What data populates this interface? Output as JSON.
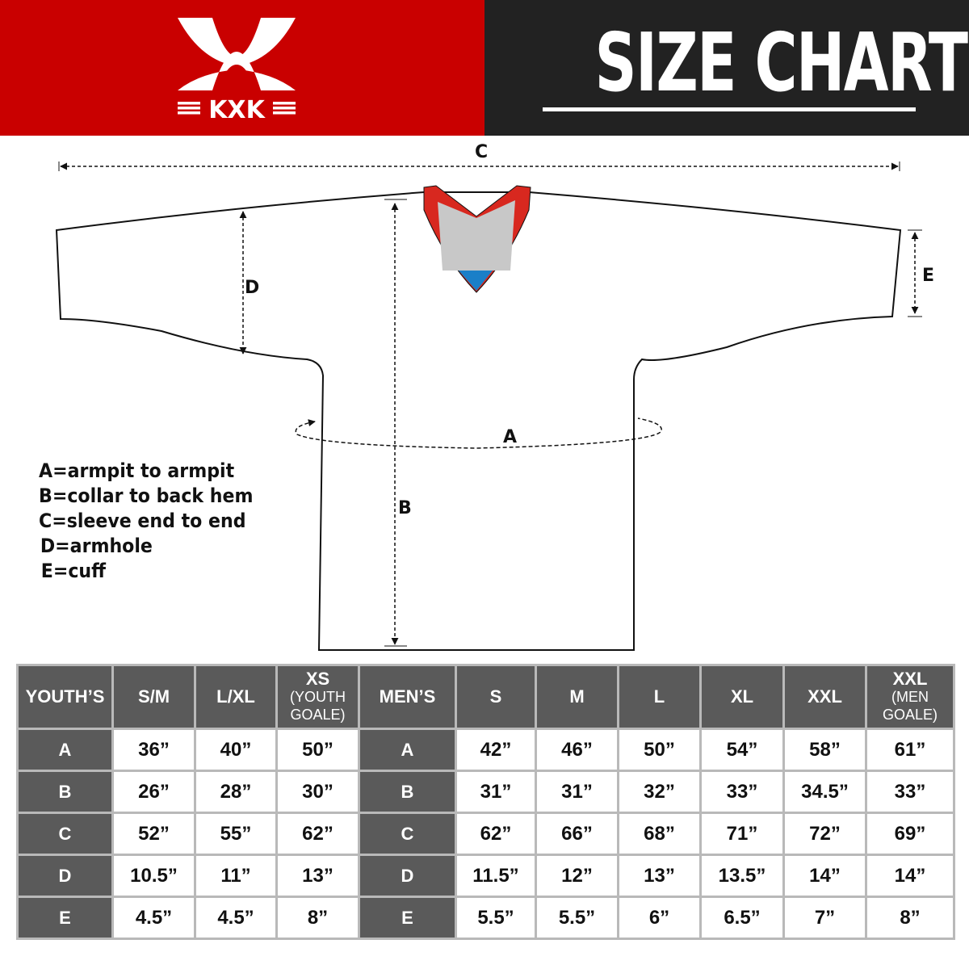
{
  "brand": {
    "logo_text": "KXK",
    "colors": {
      "red": "#c90000",
      "dark": "#222222",
      "table_header": "#5a5a5a"
    }
  },
  "header": {
    "title": "SIZE CHART"
  },
  "diagram": {
    "labels": {
      "a": "A",
      "b": "B",
      "c": "C",
      "d": "D",
      "e": "E"
    },
    "legend": [
      "A=armpit to armpit",
      "B=collar to back hem",
      "C=sleeve end to end",
      "D=armhole",
      "E=cuff"
    ]
  },
  "table": {
    "headers": [
      {
        "main": "YOUTH’S",
        "sub": ""
      },
      {
        "main": "S/M",
        "sub": ""
      },
      {
        "main": "L/XL",
        "sub": ""
      },
      {
        "main": "XS",
        "sub": "(YOUTH GOALE)"
      },
      {
        "main": "MEN’S",
        "sub": ""
      },
      {
        "main": "S",
        "sub": ""
      },
      {
        "main": "M",
        "sub": ""
      },
      {
        "main": "L",
        "sub": ""
      },
      {
        "main": "XL",
        "sub": ""
      },
      {
        "main": "XXL",
        "sub": ""
      },
      {
        "main": "XXL",
        "sub": "(MEN GOALE)"
      }
    ],
    "rows": [
      {
        "label": "A",
        "youth": [
          "36”",
          "40”",
          "50”"
        ],
        "men_label": "A",
        "men": [
          "42”",
          "46”",
          "50”",
          "54”",
          "58”",
          "61”"
        ]
      },
      {
        "label": "B",
        "youth": [
          "26”",
          "28”",
          "30”"
        ],
        "men_label": "B",
        "men": [
          "31”",
          "31”",
          "32”",
          "33”",
          "34.5”",
          "33”"
        ]
      },
      {
        "label": "C",
        "youth": [
          "52”",
          "55”",
          "62”"
        ],
        "men_label": "C",
        "men": [
          "62”",
          "66”",
          "68”",
          "71”",
          "72”",
          "69”"
        ]
      },
      {
        "label": "D",
        "youth": [
          "10.5”",
          "11”",
          "13”"
        ],
        "men_label": "D",
        "men": [
          "11.5”",
          "12”",
          "13”",
          "13.5”",
          "14”",
          "14”"
        ]
      },
      {
        "label": "E",
        "youth": [
          "4.5”",
          "4.5”",
          "8”"
        ],
        "men_label": "E",
        "men": [
          "5.5”",
          "5.5”",
          "6”",
          "6.5”",
          "7”",
          "8”"
        ]
      }
    ]
  }
}
